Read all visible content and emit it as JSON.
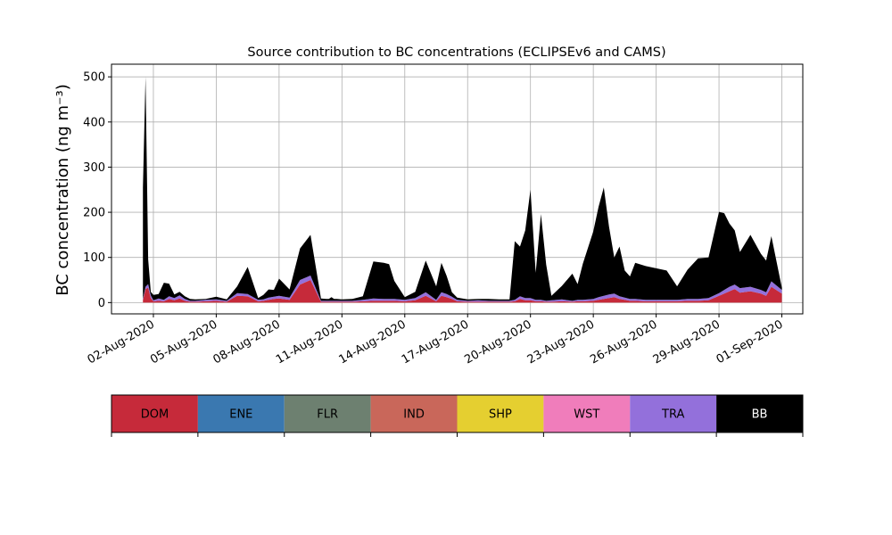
{
  "chart_data": {
    "type": "area",
    "stacked": true,
    "title": "Source contribution to BC concentrations (ECLIPSEv6 and CAMS)",
    "ylabel": "BC concentration (ng m⁻³)",
    "xlabel": "",
    "x_range": [
      "2020-07-31",
      "2020-09-02"
    ],
    "ylim": [
      -25,
      528
    ],
    "yticks": [
      0,
      100,
      200,
      300,
      400,
      500
    ],
    "xticks": [
      "02-Aug-2020",
      "05-Aug-2020",
      "08-Aug-2020",
      "11-Aug-2020",
      "14-Aug-2020",
      "17-Aug-2020",
      "20-Aug-2020",
      "23-Aug-2020",
      "26-Aug-2020",
      "29-Aug-2020",
      "01-Sep-2020"
    ],
    "grid": true,
    "legend_placement": "colorbar below plot",
    "x": [
      "2020-08-01T12",
      "2020-08-01T15",
      "2020-08-01T18",
      "2020-08-01T21",
      "2020-08-02T00",
      "2020-08-02T06",
      "2020-08-02T12",
      "2020-08-02T18",
      "2020-08-03T00",
      "2020-08-03T06",
      "2020-08-03T12",
      "2020-08-03T18",
      "2020-08-04T00",
      "2020-08-04T12",
      "2020-08-05T00",
      "2020-08-05T12",
      "2020-08-06T00",
      "2020-08-06T12",
      "2020-08-07T00",
      "2020-08-07T06",
      "2020-08-07T12",
      "2020-08-07T18",
      "2020-08-08T00",
      "2020-08-08T12",
      "2020-08-09T00",
      "2020-08-09T12",
      "2020-08-10T00",
      "2020-08-10T06",
      "2020-08-10T09",
      "2020-08-10T12",
      "2020-08-10T15",
      "2020-08-10T18",
      "2020-08-11T00",
      "2020-08-11T12",
      "2020-08-12T00",
      "2020-08-12T12",
      "2020-08-13T00",
      "2020-08-13T06",
      "2020-08-13T12",
      "2020-08-14T00",
      "2020-08-14T12",
      "2020-08-15T00",
      "2020-08-15T12",
      "2020-08-15T18",
      "2020-08-16T00",
      "2020-08-16T06",
      "2020-08-16T12",
      "2020-08-17T00",
      "2020-08-17T12",
      "2020-08-18T00",
      "2020-08-18T12",
      "2020-08-19T00",
      "2020-08-19T06",
      "2020-08-19T12",
      "2020-08-19T18",
      "2020-08-20T00",
      "2020-08-20T06",
      "2020-08-20T12",
      "2020-08-20T18",
      "2020-08-21T00",
      "2020-08-21T12",
      "2020-08-22T00",
      "2020-08-22T06",
      "2020-08-22T12",
      "2020-08-23T00",
      "2020-08-23T06",
      "2020-08-23T12",
      "2020-08-23T18",
      "2020-08-24T00",
      "2020-08-24T06",
      "2020-08-24T12",
      "2020-08-24T18",
      "2020-08-25T00",
      "2020-08-25T12",
      "2020-08-26T00",
      "2020-08-26T12",
      "2020-08-27T00",
      "2020-08-27T12",
      "2020-08-28T00",
      "2020-08-28T12",
      "2020-08-29T00",
      "2020-08-29T06",
      "2020-08-29T12",
      "2020-08-29T18",
      "2020-08-30T00",
      "2020-08-30T12",
      "2020-08-31T00",
      "2020-08-31T06",
      "2020-08-31T12",
      "2020-09-01T00"
    ],
    "series": [
      {
        "name": "DOM",
        "values": [
          5,
          30,
          33,
          10,
          3,
          4,
          3,
          8,
          5,
          9,
          4,
          2,
          2,
          3,
          4,
          2,
          15,
          14,
          3,
          4,
          6,
          8,
          9,
          6,
          40,
          50,
          2,
          2,
          2,
          2,
          2,
          2,
          2,
          2,
          3,
          4,
          4,
          4,
          4,
          3,
          5,
          15,
          3,
          15,
          12,
          8,
          3,
          2,
          2,
          2,
          2,
          2,
          3,
          8,
          5,
          5,
          3,
          3,
          2,
          2,
          3,
          2,
          3,
          3,
          4,
          6,
          8,
          10,
          12,
          8,
          6,
          4,
          4,
          3,
          3,
          3,
          3,
          4,
          4,
          5,
          15,
          20,
          25,
          30,
          22,
          25,
          20,
          15,
          35,
          20
        ]
      },
      {
        "name": "ENE",
        "values": [
          0,
          0,
          0,
          0,
          0,
          0,
          0,
          0,
          0,
          0,
          0,
          0,
          0,
          0,
          0,
          0,
          0,
          0,
          0,
          0,
          0,
          0,
          0,
          0,
          0,
          0,
          0,
          0,
          0,
          0,
          0,
          0,
          0,
          0,
          0,
          0,
          0,
          0,
          0,
          0,
          0,
          0,
          0,
          0,
          0,
          0,
          0,
          0,
          0,
          0,
          0,
          0,
          0,
          0,
          0,
          0,
          0,
          0,
          0,
          0,
          0,
          0,
          0,
          0,
          0,
          0,
          0,
          0,
          0,
          0,
          0,
          0,
          0,
          0,
          0,
          0,
          0,
          0,
          0,
          0,
          0,
          0,
          0,
          0,
          0,
          0,
          0,
          0,
          0,
          0
        ]
      },
      {
        "name": "FLR",
        "values": [
          0,
          0,
          0,
          0,
          0,
          0,
          0,
          0,
          0,
          0,
          0,
          0,
          0,
          0,
          0,
          0,
          0,
          0,
          0,
          0,
          0,
          0,
          0,
          0,
          0,
          0,
          0,
          0,
          0,
          0,
          0,
          0,
          0,
          0,
          0,
          0,
          0,
          0,
          0,
          0,
          0,
          0,
          0,
          0,
          0,
          0,
          0,
          0,
          0,
          0,
          0,
          0,
          0,
          0,
          0,
          0,
          0,
          0,
          0,
          0,
          0,
          0,
          0,
          0,
          0,
          0,
          0,
          0,
          0,
          0,
          0,
          0,
          0,
          0,
          0,
          0,
          0,
          0,
          0,
          0,
          0,
          0,
          0,
          0,
          0,
          0,
          0,
          0,
          0,
          0
        ]
      },
      {
        "name": "IND",
        "values": [
          0,
          0,
          0,
          0,
          0,
          0,
          0,
          0,
          0,
          0,
          0,
          0,
          0,
          0,
          0,
          0,
          0,
          0,
          0,
          0,
          0,
          0,
          0,
          0,
          0,
          0,
          0,
          0,
          0,
          0,
          0,
          0,
          0,
          0,
          0,
          0,
          0,
          0,
          0,
          0,
          0,
          0,
          0,
          0,
          0,
          0,
          0,
          0,
          0,
          0,
          0,
          0,
          0,
          0,
          0,
          0,
          0,
          0,
          0,
          0,
          0,
          0,
          0,
          0,
          0,
          0,
          0,
          0,
          0,
          0,
          0,
          0,
          0,
          0,
          0,
          0,
          0,
          0,
          0,
          0,
          0,
          0,
          0,
          0,
          0,
          0,
          0,
          0,
          0,
          0
        ]
      },
      {
        "name": "SHP",
        "values": [
          0,
          0,
          0,
          0,
          0,
          0,
          0,
          0,
          0,
          0,
          0,
          0,
          0,
          0,
          0,
          0,
          0,
          0,
          0,
          0,
          0,
          0,
          0,
          0,
          0,
          0,
          0,
          0,
          0,
          0,
          0,
          0,
          0,
          0,
          0,
          0,
          0,
          0,
          0,
          0,
          0,
          0,
          0,
          0,
          0,
          0,
          0,
          0,
          0,
          0,
          0,
          0,
          0,
          0,
          0,
          0,
          0,
          0,
          0,
          0,
          0,
          0,
          0,
          0,
          0,
          0,
          0,
          0,
          0,
          0,
          0,
          0,
          0,
          0,
          0,
          0,
          0,
          0,
          0,
          0,
          0,
          0,
          0,
          0,
          0,
          0,
          0,
          0,
          0,
          0
        ]
      },
      {
        "name": "WST",
        "values": [
          0,
          0,
          0,
          0,
          0,
          0,
          0,
          0,
          0,
          0,
          0,
          0,
          0,
          0,
          0,
          0,
          0,
          0,
          0,
          0,
          0,
          0,
          0,
          0,
          0,
          0,
          0,
          0,
          0,
          0,
          0,
          0,
          0,
          0,
          0,
          0,
          0,
          0,
          0,
          0,
          0,
          0,
          0,
          0,
          0,
          0,
          0,
          0,
          0,
          0,
          0,
          0,
          0,
          0,
          0,
          0,
          0,
          0,
          0,
          0,
          0,
          0,
          0,
          0,
          0,
          0,
          0,
          0,
          0,
          0,
          0,
          0,
          0,
          0,
          0,
          0,
          0,
          0,
          0,
          0,
          0,
          0,
          0,
          0,
          0,
          0,
          0,
          0,
          0,
          0
        ]
      },
      {
        "name": "TRA",
        "values": [
          3,
          5,
          8,
          6,
          2,
          5,
          3,
          6,
          5,
          7,
          4,
          2,
          2,
          3,
          3,
          2,
          6,
          5,
          3,
          3,
          5,
          5,
          6,
          5,
          10,
          10,
          2,
          2,
          2,
          2,
          2,
          2,
          2,
          2,
          3,
          5,
          4,
          4,
          4,
          3,
          5,
          8,
          3,
          8,
          7,
          5,
          3,
          2,
          3,
          2,
          2,
          2,
          3,
          6,
          5,
          5,
          3,
          3,
          2,
          3,
          4,
          2,
          3,
          3,
          4,
          6,
          7,
          8,
          8,
          6,
          5,
          4,
          4,
          3,
          3,
          3,
          3,
          4,
          4,
          5,
          6,
          8,
          10,
          10,
          10,
          10,
          8,
          8,
          12,
          8
        ]
      },
      {
        "name": "BB",
        "values": [
          247,
          465,
          55,
          8,
          12,
          10,
          38,
          28,
          8,
          8,
          6,
          4,
          3,
          2,
          6,
          3,
          15,
          60,
          4,
          10,
          18,
          15,
          38,
          18,
          70,
          90,
          5,
          4,
          4,
          8,
          4,
          4,
          3,
          4,
          8,
          82,
          80,
          77,
          40,
          6,
          14,
          70,
          30,
          65,
          40,
          10,
          5,
          3,
          3,
          4,
          3,
          3,
          130,
          110,
          150,
          240,
          60,
          190,
          80,
          10,
          30,
          60,
          35,
          80,
          150,
          200,
          240,
          150,
          80,
          110,
          60,
          50,
          80,
          75,
          70,
          65,
          30,
          65,
          90,
          90,
          180,
          170,
          140,
          120,
          80,
          115,
          80,
          70,
          100,
          5
        ]
      }
    ]
  },
  "legend": {
    "labels": [
      "DOM",
      "ENE",
      "FLR",
      "IND",
      "SHP",
      "WST",
      "TRA",
      "BB"
    ],
    "colors": [
      "#c62a3a",
      "#3a78b0",
      "#6d8070",
      "#c9675a",
      "#e5cf30",
      "#f07dbb",
      "#9370db",
      "#000000"
    ]
  }
}
